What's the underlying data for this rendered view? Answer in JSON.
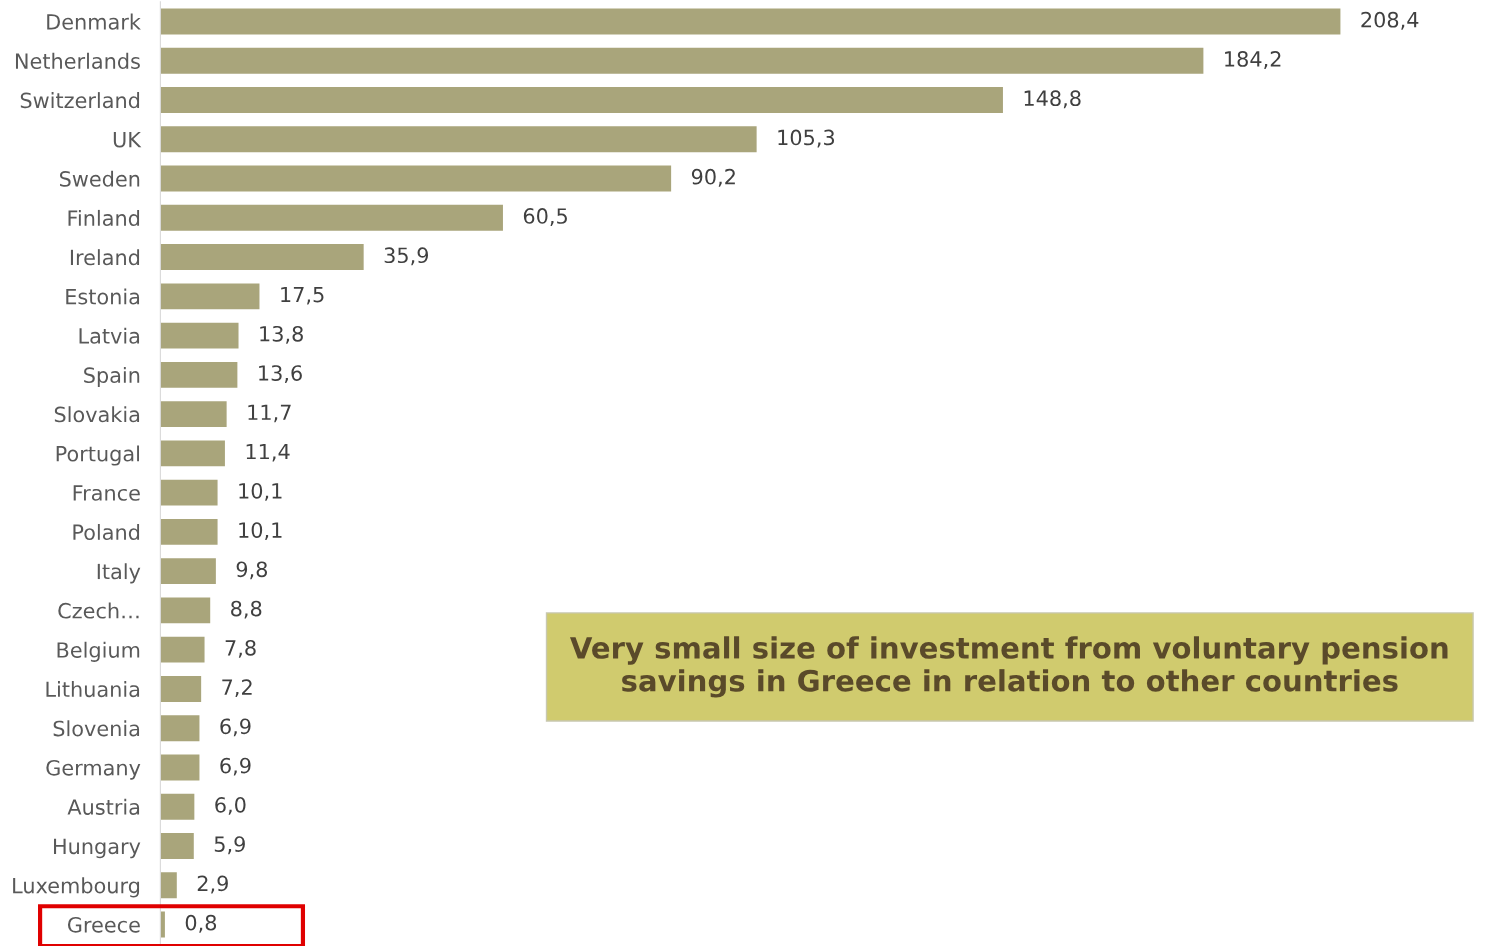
{
  "chart_data": {
    "type": "bar",
    "orientation": "horizontal",
    "categories": [
      "Denmark",
      "Netherlands",
      "Switzerland",
      "UK",
      "Sweden",
      "Finland",
      "Ireland",
      "Estonia",
      "Latvia",
      "Spain",
      "Slovakia",
      "Portugal",
      "France",
      "Poland",
      "Italy",
      "Czech…",
      "Belgium",
      "Lithuania",
      "Slovenia",
      "Germany",
      "Austria",
      "Hungary",
      "Luxembourg",
      "Greece"
    ],
    "values": [
      208.4,
      184.2,
      148.8,
      105.3,
      90.2,
      60.5,
      35.9,
      17.5,
      13.8,
      13.6,
      11.7,
      11.4,
      10.1,
      10.1,
      9.8,
      8.8,
      7.8,
      7.2,
      6.9,
      6.9,
      6.0,
      5.9,
      2.9,
      0.8
    ],
    "value_labels": [
      "208,4",
      "184,2",
      "148,8",
      "105,3",
      "90,2",
      "60,5",
      "35,9",
      "17,5",
      "13,8",
      "13,6",
      "11,7",
      "11,4",
      "10,1",
      "10,1",
      "9,8",
      "8,8",
      "7,8",
      "7,2",
      "6,9",
      "6,9",
      "6,0",
      "5,9",
      "2,9",
      "0,8"
    ],
    "color": "#a9a57b",
    "annotations": [
      "Very small size of investment from voluntary pension savings in Greece in relation to other countries"
    ],
    "grid": false,
    "legend": false
  }
}
